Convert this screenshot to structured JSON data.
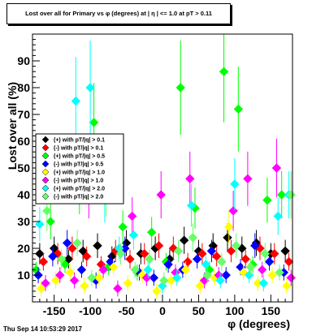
{
  "chart_data": {
    "type": "scatter",
    "title": "Lost over all for Primary vs φ (degrees) at | η | <= 1.0 at pT > 0.11",
    "xlabel": "φ (degrees)",
    "ylabel": "Lost over all (%)",
    "xlim": [
      -180,
      180
    ],
    "ylim": [
      0,
      100
    ],
    "x_ticks": [
      -150,
      -100,
      -50,
      0,
      50,
      100,
      150
    ],
    "y_ticks": [
      10,
      20,
      30,
      40,
      50,
      60,
      70,
      80,
      90
    ],
    "legend_position": "left-middle",
    "grid": false,
    "series": [
      {
        "name": "(+) with pT/|q| > 0.1",
        "color": "#000000",
        "x": [
          -170,
          -150,
          -130,
          -110,
          -90,
          -70,
          -50,
          -30,
          -10,
          10,
          30,
          50,
          70,
          90,
          110,
          130,
          150,
          170
        ],
        "y": [
          18,
          20,
          16,
          19,
          21,
          17,
          22,
          18,
          20,
          16,
          23,
          19,
          21,
          24,
          20,
          22,
          18,
          19
        ]
      },
      {
        "name": "(-) with pT/|q| > 0.1",
        "color": "#ff0000",
        "x": [
          -165,
          -145,
          -125,
          -105,
          -85,
          -65,
          -45,
          -25,
          -5,
          15,
          35,
          55,
          75,
          95,
          115,
          135,
          155,
          175
        ],
        "y": [
          15,
          18,
          20,
          17,
          14,
          19,
          16,
          18,
          21,
          20,
          15,
          18,
          17,
          19,
          16,
          20,
          18,
          15
        ]
      },
      {
        "name": "(+) with pT/|q| > 0.5",
        "color": "#00ff00",
        "x": [
          -175,
          -155,
          -135,
          -115,
          -95,
          -75,
          -55,
          -35,
          -15,
          5,
          25,
          45,
          65,
          85,
          105,
          125,
          145,
          165
        ],
        "y": [
          12,
          30,
          14,
          42,
          67,
          13,
          28,
          11,
          26,
          15,
          80,
          35,
          12,
          86,
          72,
          14,
          38,
          40
        ]
      },
      {
        "name": "(-) with pT/|q| > 0.5",
        "color": "#0000ff",
        "x": [
          -172,
          -152,
          -132,
          -112,
          -92,
          -72,
          -52,
          -32,
          -12,
          8,
          28,
          48,
          68,
          88,
          108,
          128,
          148,
          168
        ],
        "y": [
          10,
          17,
          22,
          12,
          8,
          15,
          20,
          11,
          9,
          14,
          12,
          16,
          19,
          10,
          13,
          21,
          15,
          11
        ]
      },
      {
        "name": "(+) with pT/|q| > 1.0",
        "color": "#ffff00",
        "x": [
          -168,
          -148,
          -128,
          -108,
          -88,
          -68,
          -48,
          -28,
          -8,
          12,
          32,
          52,
          72,
          92,
          112,
          132,
          152,
          172
        ],
        "y": [
          5,
          8,
          11,
          6,
          9,
          13,
          7,
          10,
          4,
          8,
          12,
          6,
          9,
          28,
          11,
          7,
          10,
          6
        ]
      },
      {
        "name": "(-) with pT/|q| > 1.0",
        "color": "#ff00ff",
        "x": [
          -162,
          -142,
          -122,
          -102,
          -82,
          -62,
          -42,
          -22,
          -2,
          18,
          38,
          58,
          78,
          98,
          118,
          138,
          158,
          178
        ],
        "y": [
          7,
          10,
          8,
          40,
          12,
          5,
          32,
          9,
          40,
          11,
          46,
          8,
          10,
          34,
          46,
          12,
          50,
          9
        ]
      },
      {
        "name": "(+) with pT/|q| > 2.0",
        "color": "#00ffff",
        "x": [
          -170,
          -150,
          -120,
          -100,
          -80,
          -60,
          -40,
          -20,
          0,
          20,
          40,
          60,
          80,
          100,
          120,
          140,
          160,
          175
        ],
        "y": [
          29,
          48,
          75,
          80,
          38,
          20,
          25,
          12,
          6,
          9,
          36,
          14,
          8,
          44,
          10,
          7,
          32,
          40
        ]
      },
      {
        "name": "(-) with pT/|q| > 2.0",
        "color": "#66ff66",
        "x": [
          -160,
          -140,
          -118,
          -98,
          -78,
          -58,
          -38,
          -18,
          2,
          22,
          42,
          62,
          82,
          102,
          122,
          142,
          162,
          178
        ],
        "y": [
          34,
          16,
          22,
          9,
          41,
          18,
          12,
          16,
          8,
          19,
          24,
          10,
          15,
          21,
          13,
          18,
          11,
          40
        ]
      }
    ]
  },
  "footer_text": "Thu Sep 14 10:53:29 2017"
}
